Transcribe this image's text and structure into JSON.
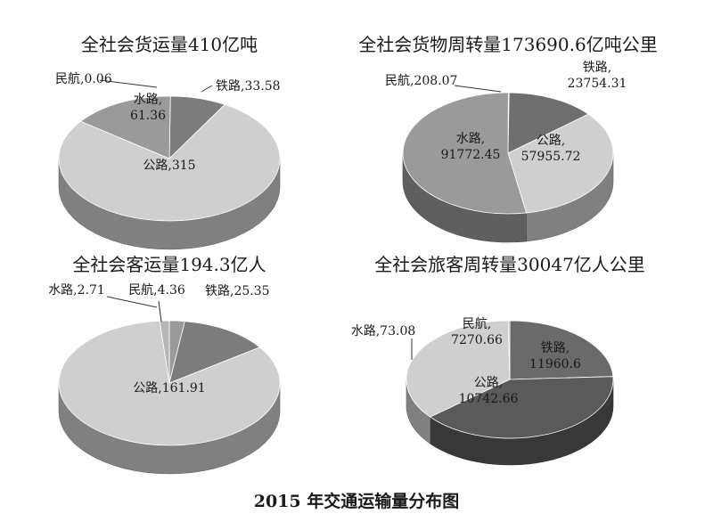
{
  "figure_caption": "2015 年交通运输量分布图",
  "chart_data": [
    {
      "type": "pie",
      "title": "全社会货运量410亿吨",
      "slices": [
        {
          "name": "民航",
          "value": 0.06,
          "label": "民航,0.06",
          "color": "#5e5e5e"
        },
        {
          "name": "铁路",
          "value": 33.58,
          "label": "铁路,33.58",
          "color": "#7c7c7c"
        },
        {
          "name": "公路",
          "value": 315,
          "label": "公路,315",
          "color": "#cfcfcf"
        },
        {
          "name": "水路",
          "value": 61.36,
          "label": "水路,\n61.36",
          "color": "#9a9a9a"
        }
      ]
    },
    {
      "type": "pie",
      "title": "全社会货物周转量173690.6亿吨公里",
      "slices": [
        {
          "name": "民航",
          "value": 208.07,
          "label": "民航,208.07",
          "color": "#5e5e5e"
        },
        {
          "name": "铁路",
          "value": 23754.31,
          "label": "铁路,\n23754.31",
          "color": "#6f6f6f"
        },
        {
          "name": "公路",
          "value": 57955.72,
          "label": "公路,\n57955.72",
          "color": "#cfcfcf"
        },
        {
          "name": "水路",
          "value": 91772.45,
          "label": "水路,\n91772.45",
          "color": "#9a9a9a"
        }
      ]
    },
    {
      "type": "pie",
      "title": "全社会客运量194.3亿人",
      "slices": [
        {
          "name": "民航",
          "value": 4.36,
          "label": "民航,4.36",
          "color": "#9a9a9a"
        },
        {
          "name": "铁路",
          "value": 25.35,
          "label": "铁路,25.35",
          "color": "#7c7c7c"
        },
        {
          "name": "公路",
          "value": 161.91,
          "label": "公路,161.91",
          "color": "#cfcfcf"
        },
        {
          "name": "水路",
          "value": 2.71,
          "label": "水路,2.71",
          "color": "#b6b6b6"
        }
      ]
    },
    {
      "type": "pie",
      "title": "全社会旅客周转量30047亿人公里",
      "slices": [
        {
          "name": "民航",
          "value": 7270.66,
          "label": "民航,\n7270.66",
          "color": "#6a6a6a"
        },
        {
          "name": "铁路",
          "value": 11960.6,
          "label": "铁路,\n11960.6",
          "color": "#5a5a5a"
        },
        {
          "name": "公路",
          "value": 10742.66,
          "label": "公路,\n10742.66",
          "color": "#cfcfcf"
        },
        {
          "name": "水路",
          "value": 73.08,
          "label": "水路,73.08",
          "color": "#b6b6b6"
        }
      ]
    }
  ]
}
